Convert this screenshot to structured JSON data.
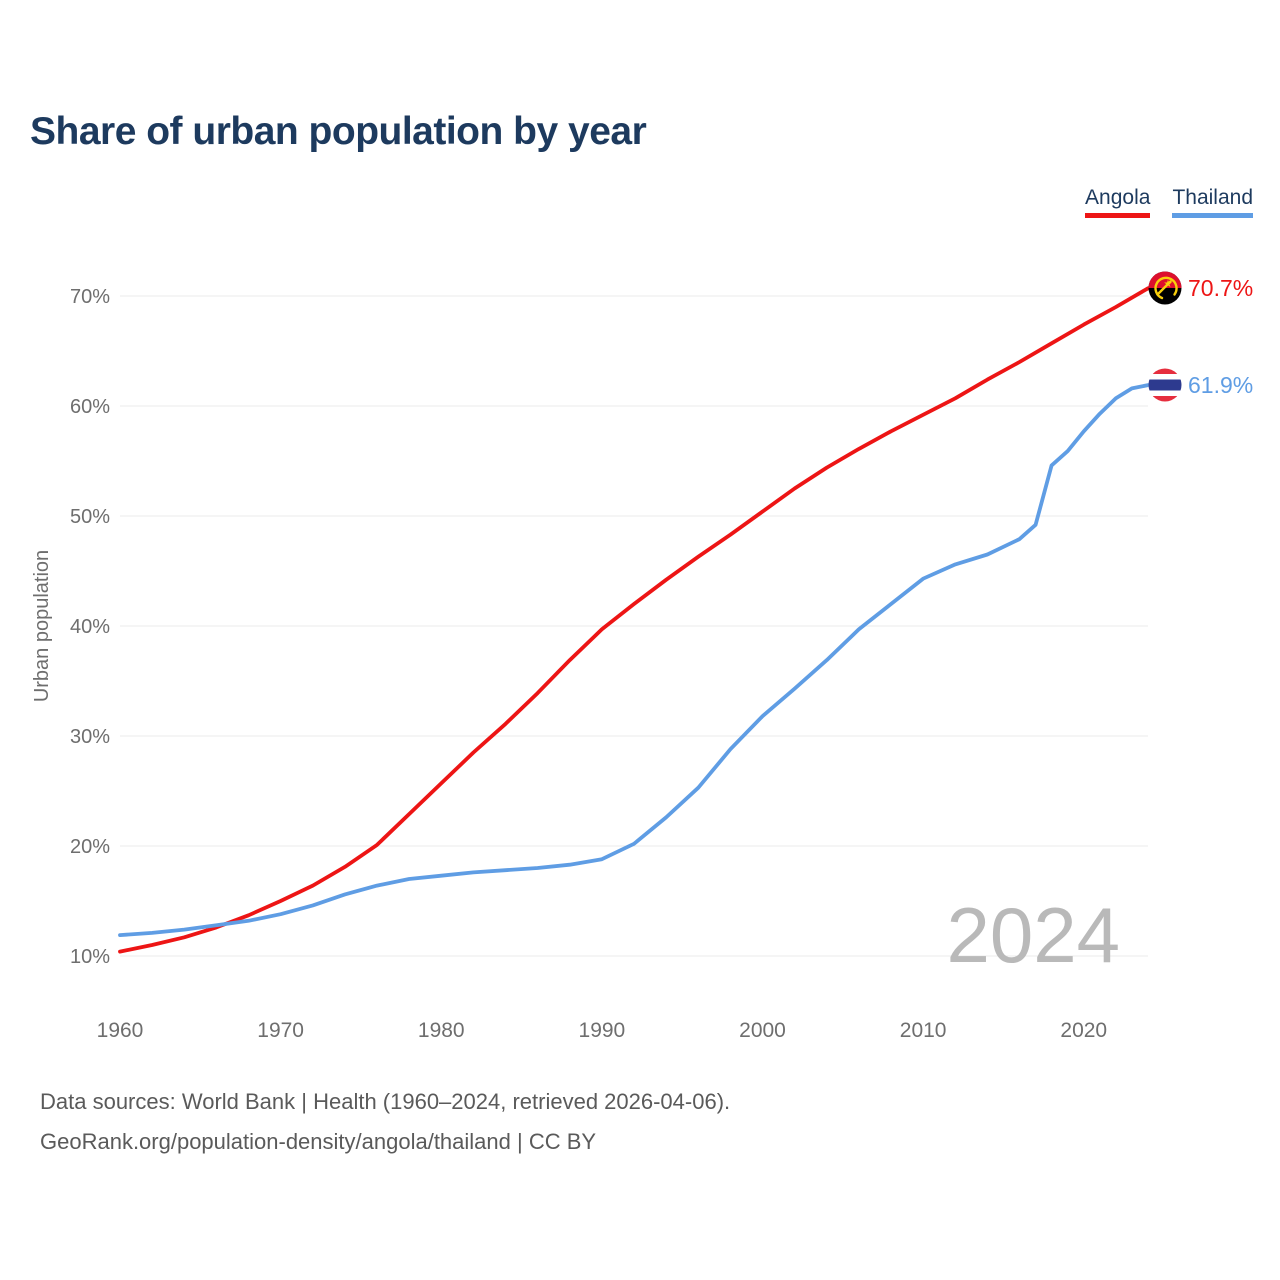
{
  "title": "Share of urban population by year",
  "legend": [
    {
      "label": "Angola",
      "color": "#ed1515"
    },
    {
      "label": "Thailand",
      "color": "#5f9de4"
    }
  ],
  "y_axis": {
    "label": "Urban population",
    "ticks": [
      {
        "label": "70%",
        "value": 70
      },
      {
        "label": "60%",
        "value": 60
      },
      {
        "label": "50%",
        "value": 50
      },
      {
        "label": "40%",
        "value": 40
      },
      {
        "label": "30%",
        "value": 30
      },
      {
        "label": "20%",
        "value": 20
      },
      {
        "label": "10%",
        "value": 10
      }
    ]
  },
  "x_axis": {
    "ticks": [
      {
        "label": "1960",
        "year": 1960
      },
      {
        "label": "1970",
        "year": 1970
      },
      {
        "label": "1980",
        "year": 1980
      },
      {
        "label": "1990",
        "year": 1990
      },
      {
        "label": "2000",
        "year": 2000
      },
      {
        "label": "2010",
        "year": 2010
      },
      {
        "label": "2020",
        "year": 2020
      }
    ]
  },
  "end_labels": {
    "angola": "70.7%",
    "thailand": "61.9%"
  },
  "watermark": "2024",
  "footer": {
    "line1": "Data sources: World Bank | Health (1960–2024, retrieved 2026-04-06).",
    "line2": "GeoRank.org/population-density/angola/thailand | CC BY"
  },
  "chart_data": {
    "type": "line",
    "title": "Share of urban population by year",
    "xlabel": "",
    "ylabel": "Urban population",
    "x_range": [
      1960,
      2024
    ],
    "ylim": [
      10,
      70
    ],
    "y_unit": "%",
    "grid": "horizontal",
    "legend_position": "top-right",
    "series": [
      {
        "name": "Angola",
        "color": "#ed1515",
        "end_value": 70.7,
        "end_label": "70.7%",
        "points": [
          [
            1960,
            10.4
          ],
          [
            1962,
            11.0
          ],
          [
            1964,
            11.7
          ],
          [
            1966,
            12.6
          ],
          [
            1968,
            13.7
          ],
          [
            1970,
            15.0
          ],
          [
            1972,
            16.4
          ],
          [
            1974,
            18.1
          ],
          [
            1976,
            20.1
          ],
          [
            1978,
            22.9
          ],
          [
            1980,
            25.7
          ],
          [
            1982,
            28.5
          ],
          [
            1984,
            31.1
          ],
          [
            1986,
            33.9
          ],
          [
            1988,
            36.9
          ],
          [
            1990,
            39.7
          ],
          [
            1992,
            42.0
          ],
          [
            1994,
            44.2
          ],
          [
            1996,
            46.3
          ],
          [
            1998,
            48.3
          ],
          [
            2000,
            50.4
          ],
          [
            2002,
            52.5
          ],
          [
            2004,
            54.4
          ],
          [
            2006,
            56.1
          ],
          [
            2008,
            57.7
          ],
          [
            2010,
            59.2
          ],
          [
            2012,
            60.7
          ],
          [
            2014,
            62.4
          ],
          [
            2016,
            64.0
          ],
          [
            2018,
            65.7
          ],
          [
            2020,
            67.4
          ],
          [
            2022,
            69.0
          ],
          [
            2024,
            70.7
          ]
        ]
      },
      {
        "name": "Thailand",
        "color": "#5f9de4",
        "end_value": 61.9,
        "end_label": "61.9%",
        "points": [
          [
            1960,
            11.9
          ],
          [
            1962,
            12.1
          ],
          [
            1964,
            12.4
          ],
          [
            1966,
            12.8
          ],
          [
            1968,
            13.2
          ],
          [
            1970,
            13.8
          ],
          [
            1972,
            14.6
          ],
          [
            1974,
            15.6
          ],
          [
            1976,
            16.4
          ],
          [
            1978,
            17.0
          ],
          [
            1980,
            17.3
          ],
          [
            1982,
            17.6
          ],
          [
            1984,
            17.8
          ],
          [
            1986,
            18.0
          ],
          [
            1988,
            18.3
          ],
          [
            1990,
            18.8
          ],
          [
            1992,
            20.2
          ],
          [
            1994,
            22.6
          ],
          [
            1996,
            25.3
          ],
          [
            1998,
            28.8
          ],
          [
            2000,
            31.8
          ],
          [
            2002,
            34.3
          ],
          [
            2004,
            36.9
          ],
          [
            2006,
            39.7
          ],
          [
            2008,
            42.0
          ],
          [
            2010,
            44.3
          ],
          [
            2012,
            45.6
          ],
          [
            2014,
            46.5
          ],
          [
            2016,
            47.9
          ],
          [
            2017,
            49.2
          ],
          [
            2018,
            54.6
          ],
          [
            2019,
            55.9
          ],
          [
            2020,
            57.7
          ],
          [
            2021,
            59.3
          ],
          [
            2022,
            60.7
          ],
          [
            2023,
            61.6
          ],
          [
            2024,
            61.9
          ]
        ]
      }
    ]
  }
}
